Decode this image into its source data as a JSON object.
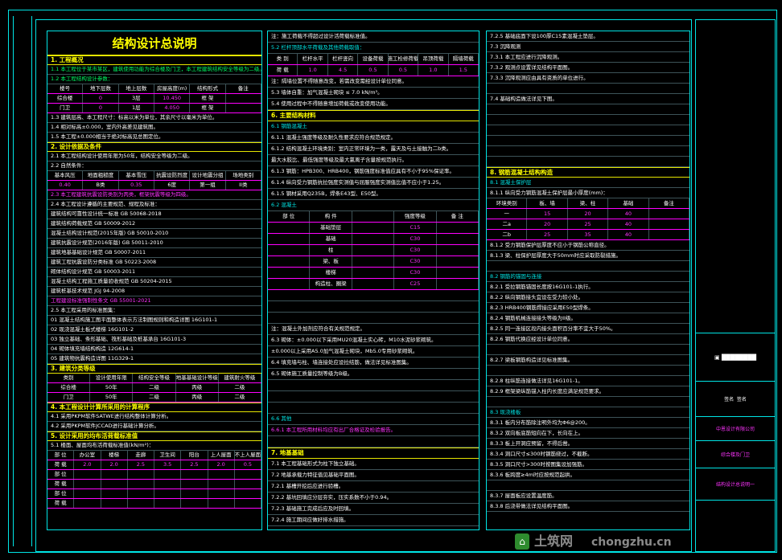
{
  "sheet": {
    "title": "结构设计总说明",
    "panel1": [
      {
        "k": "h",
        "text": "1. 工程概况"
      },
      {
        "k": "s",
        "text": "1.1 本工程位于某市某区，建筑使用功能为综合楼及门卫，本工程建筑结构安全等级为二级。"
      },
      {
        "k": "s",
        "text": "1.2 本工程结构设计参数："
      },
      {
        "k": "t",
        "cells": [
          "楼号",
          "地下层数",
          "地上层数",
          "房屋高度(m)",
          "结构形式",
          "备注"
        ]
      },
      {
        "k": "t",
        "cells": [
          "综合楼",
          "0",
          "3层",
          "10.450",
          "框 架",
          ""
        ]
      },
      {
        "k": "t",
        "cells": [
          "门卫",
          "0",
          "1层",
          "4.050",
          "框 架",
          ""
        ]
      },
      {
        "k": "p",
        "text": "1.3 建筑层高、本工程尺寸：标高以米为单位，其余尺寸以毫米为单位。"
      },
      {
        "k": "p",
        "text": "1.4 相对标高±0.000，室内外高差见建筑图。"
      },
      {
        "k": "p",
        "text": "1.5 本工程±0.000相当于绝对标高见总图定位。"
      },
      {
        "k": "h",
        "text": "2. 设计依据及条件"
      },
      {
        "k": "p",
        "text": "2.1 本工程结构设计使用年限为50年，结构安全等级为二级。"
      },
      {
        "k": "p",
        "text": "2.2 自然条件："
      },
      {
        "k": "t",
        "cells": [
          "基本风压",
          "地面粗糙度",
          "基本雪压",
          "抗震设防烈度",
          "设计地震分组",
          "场地类别"
        ]
      },
      {
        "k": "t",
        "cells": [
          "0.40",
          "B类",
          "0.35",
          "6度",
          "第一组",
          "II类"
        ]
      },
      {
        "k": "m",
        "text": "2.3 本工程建筑抗震设防类别为丙类，框架抗震等级为四级。"
      },
      {
        "k": "p",
        "text": "2.4 本工程设计遵循的主要规范、规程及标准："
      },
      {
        "k": "p",
        "text": "建筑结构可靠性设计统一标准        GB 50068-2018"
      },
      {
        "k": "p",
        "text": "建筑结构荷载规范                  GB 50009-2012"
      },
      {
        "k": "p",
        "text": "混凝土结构设计规范(2015年版)       GB 50010-2010"
      },
      {
        "k": "p",
        "text": "建筑抗震设计规范(2016年版)         GB 50011-2010"
      },
      {
        "k": "p",
        "text": "建筑地基基础设计规范              GB 50007-2011"
      },
      {
        "k": "p",
        "text": "建筑工程抗震设防分类标准          GB 50223-2008"
      },
      {
        "k": "p",
        "text": "砌体结构设计规范                  GB 50003-2011"
      },
      {
        "k": "p",
        "text": "混凝土结构工程施工质量验收规范    GB 50204-2015"
      },
      {
        "k": "p",
        "text": "建筑桩基技术规范                  JGJ 94-2008"
      },
      {
        "k": "m",
        "text": "工程建设标准强制性条文            GB 55001-2021"
      },
      {
        "k": "p",
        "text": "2.5 本工程采用的标准图集："
      },
      {
        "k": "p",
        "text": "01  混凝土结构施工图平面整体表示方法制图规则和构造详图   16G101-1"
      },
      {
        "k": "p",
        "text": "02  现浇混凝土板式楼梯                                   16G101-2"
      },
      {
        "k": "p",
        "text": "03  独立基础、条形基础、筏形基础及桩基承台               16G101-3"
      },
      {
        "k": "p",
        "text": "04  砌体填充墙结构构造                                   12G614-1"
      },
      {
        "k": "p",
        "text": "05  建筑物抗震构造详图                                   11G329-1"
      },
      {
        "k": "h",
        "text": "3. 建筑分类等级"
      },
      {
        "k": "t",
        "cells": [
          "类别",
          "设计使用年限",
          "结构安全等级",
          "地基基础设计等级",
          "建筑耐火等级"
        ]
      },
      {
        "k": "t",
        "cells": [
          "综合楼",
          "50年",
          "二级",
          "丙级",
          "二级"
        ]
      },
      {
        "k": "t",
        "cells": [
          "门卫",
          "50年",
          "二级",
          "丙级",
          "二级"
        ]
      },
      {
        "k": "h",
        "text": "4. 本工程设计计算所采用的计算程序"
      },
      {
        "k": "p",
        "text": "4.1 采用PKPM软件SATWE进行结构整体计算分析。"
      },
      {
        "k": "p",
        "text": "4.2 采用PKPM软件JCCAD进行基础计算分析。"
      },
      {
        "k": "h",
        "text": "5. 设计采用的均布活荷载标准值"
      },
      {
        "k": "p",
        "text": "5.1 楼面、屋面均布活荷载标准值(kN/m²)："
      },
      {
        "k": "t",
        "cells": [
          "部 位",
          "办公室",
          "楼梯",
          "走廊",
          "卫生间",
          "阳台",
          "上人屋面",
          "不上人屋面"
        ]
      },
      {
        "k": "t",
        "cells": [
          "荷 载",
          "2.0",
          "2.0",
          "2.5",
          "3.5",
          "2.5",
          "2.0",
          "0.5"
        ]
      },
      {
        "k": "t",
        "cells": [
          "部 位",
          "",
          "",
          "",
          "",
          "",
          "",
          ""
        ]
      },
      {
        "k": "t",
        "cells": [
          "荷 载",
          "",
          "",
          "",
          "",
          "",
          "",
          ""
        ]
      },
      {
        "k": "t",
        "cells": [
          "部 位",
          "",
          "",
          "",
          "",
          "",
          "",
          ""
        ]
      },
      {
        "k": "t",
        "cells": [
          "荷 载",
          "",
          "",
          "",
          "",
          "",
          "",
          ""
        ]
      }
    ],
    "panel2": [
      {
        "k": "p",
        "text": "注：施工荷载不得超过设计活荷载标准值。"
      },
      {
        "k": "c",
        "text": "5.2 栏杆顶部水平荷载及其他荷载取值："
      },
      {
        "k": "t",
        "cells": [
          "类 别",
          "栏杆水平",
          "栏杆竖向",
          "设备荷载",
          "施工检修荷载",
          "吊顶荷载",
          "隔墙荷载"
        ]
      },
      {
        "k": "t",
        "cells": [
          "荷 载",
          "1.0",
          "4.5",
          "0.5",
          "0.5",
          "1.0",
          "1.5"
        ]
      },
      {
        "k": "p",
        "text": "注：隔墙位置不得随意改变，若需改变需经设计单位同意。"
      },
      {
        "k": "p",
        "text": "5.3 墙体自重：加气混凝土砌块 ≤ 7.0 kN/m³。"
      },
      {
        "k": "p",
        "text": "5.4 使用过程中不得随意增加荷载或改变使用功能。"
      },
      {
        "k": "h",
        "text": "6. 主要结构材料"
      },
      {
        "k": "c",
        "text": "6.1 钢筋混凝土"
      },
      {
        "k": "p",
        "text": "6.1.1 混凝土强度等级及耐久性要求应符合规范规定。"
      },
      {
        "k": "p",
        "text": "6.1.2 结构混凝土环境类别：室内正常环境为一类，露天及与土接触为二b类。"
      },
      {
        "k": "p",
        "text": "      最大水胶比、最低强度等级及最大氯离子含量按规范执行。"
      },
      {
        "k": "p",
        "text": "6.1.3 钢筋：HPB300、HRB400，钢筋强度标准值应具有不小于95%保证率。"
      },
      {
        "k": "p",
        "text": "6.1.4 纵向受力钢筋抗拉强度实测值与屈服强度实测值比值不应小于1.25。"
      },
      {
        "k": "p",
        "text": "6.1.5 钢材采用Q235B，焊条E43型、E50型。"
      },
      {
        "k": "c",
        "text": "6.2 混凝土"
      },
      {
        "k": "t",
        "cells": [
          "部 位",
          "构 件",
          "",
          "强度等级",
          "备 注"
        ]
      },
      {
        "k": "t",
        "cells": [
          "",
          "基础垫层",
          "",
          "C15",
          ""
        ]
      },
      {
        "k": "t",
        "cells": [
          "",
          "基础",
          "",
          "C30",
          ""
        ]
      },
      {
        "k": "t",
        "cells": [
          "",
          "柱",
          "",
          "C30",
          ""
        ]
      },
      {
        "k": "t",
        "cells": [
          "",
          "梁、板",
          "",
          "C30",
          ""
        ]
      },
      {
        "k": "t",
        "cells": [
          "",
          "楼梯",
          "",
          "C30",
          ""
        ]
      },
      {
        "k": "t",
        "cells": [
          "",
          "构造柱、圈梁",
          "",
          "C25",
          ""
        ]
      },
      {
        "k": "p",
        "text": ""
      },
      {
        "k": "p",
        "text": ""
      },
      {
        "k": "p",
        "text": ""
      },
      {
        "k": "p",
        "text": "注：混凝土外加剂应符合有关规范规定。"
      },
      {
        "k": "p",
        "text": "6.3 砌体：±0.000以下采用MU20混凝土实心砖，M10水泥砂浆砌筑。"
      },
      {
        "k": "p",
        "text": "      ±0.000以上采用A5.0加气混凝土砌块，Mb5.0专用砂浆砌筑。"
      },
      {
        "k": "p",
        "text": "6.4 填充墙与柱、墙连接处应设拉结筋，做法详见标准图集。"
      },
      {
        "k": "p",
        "text": "6.5 砌体施工质量控制等级为B级。"
      },
      {
        "k": "p",
        "text": ""
      },
      {
        "k": "p",
        "text": ""
      },
      {
        "k": "p",
        "text": ""
      },
      {
        "k": "c",
        "text": "6.6 其他"
      },
      {
        "k": "m",
        "text": "6.6.1 本工程所用材料均应有出厂合格证及检验报告。"
      },
      {
        "k": "p",
        "text": ""
      },
      {
        "k": "h",
        "text": "7. 地基基础"
      },
      {
        "k": "p",
        "text": "7.1 本工程基础形式为柱下独立基础。"
      },
      {
        "k": "p",
        "text": "7.2 地基承载力特征值见基础平面图。"
      },
      {
        "k": "p",
        "text": "7.2.1 基槽开挖后应进行验槽。"
      },
      {
        "k": "p",
        "text": "7.2.2 基坑回填应分层夯实，压实系数不小于0.94。"
      },
      {
        "k": "p",
        "text": "7.2.3 基础施工完成后应及时回填。"
      },
      {
        "k": "p",
        "text": "7.2.4 施工期间应做好排水措施。"
      }
    ],
    "panel3": [
      {
        "k": "p",
        "text": "7.2.5 基础底面下设100厚C15素混凝土垫层。"
      },
      {
        "k": "p",
        "text": "7.3 沉降观测"
      },
      {
        "k": "p",
        "text": "7.3.1 本工程应进行沉降观测。"
      },
      {
        "k": "p",
        "text": "7.3.2 观测点设置详见结构平面图。"
      },
      {
        "k": "p",
        "text": "7.3.3 沉降观测应由具有资质的单位进行。"
      },
      {
        "k": "p",
        "text": ""
      },
      {
        "k": "p",
        "text": "7.4 基础构造做法详见下图。"
      },
      {
        "k": "p",
        "text": ""
      },
      {
        "k": "p",
        "text": ""
      },
      {
        "k": "p",
        "text": ""
      },
      {
        "k": "p",
        "text": ""
      },
      {
        "k": "p",
        "text": ""
      },
      {
        "k": "p",
        "text": ""
      },
      {
        "k": "h",
        "text": "8. 钢筋混凝土结构构造"
      },
      {
        "k": "c",
        "text": "8.1 混凝土保护层"
      },
      {
        "k": "p",
        "text": "8.1.1 纵向受力钢筋混凝土保护层最小厚度(mm)："
      },
      {
        "k": "t",
        "cells": [
          "环境类别",
          "板、墙",
          "梁、柱",
          "基础",
          "备注"
        ]
      },
      {
        "k": "t",
        "cells": [
          "一",
          "15",
          "20",
          "40",
          ""
        ]
      },
      {
        "k": "t",
        "cells": [
          "二a",
          "20",
          "25",
          "40",
          ""
        ]
      },
      {
        "k": "t",
        "cells": [
          "二b",
          "25",
          "35",
          "40",
          ""
        ]
      },
      {
        "k": "p",
        "text": "8.1.2 受力钢筋保护层厚度不应小于钢筋公称直径。"
      },
      {
        "k": "p",
        "text": "8.1.3 梁、柱保护层厚度大于50mm时应采取防裂措施。"
      },
      {
        "k": "p",
        "text": ""
      },
      {
        "k": "c",
        "text": "8.2 钢筋的锚固与连接"
      },
      {
        "k": "p",
        "text": "8.2.1 受拉钢筋锚固长度按16G101-1执行。"
      },
      {
        "k": "p",
        "text": "8.2.2 纵向钢筋接头宜设在受力较小处。"
      },
      {
        "k": "p",
        "text": "8.2.3 HRB400钢筋焊接应采用E50型焊条。"
      },
      {
        "k": "p",
        "text": "8.2.4 钢筋机械连接接头等级为II级。"
      },
      {
        "k": "p",
        "text": "8.2.5 同一连接区段内接头面积百分率不宜大于50%。"
      },
      {
        "k": "p",
        "text": "8.2.6 钢筋代换应经设计单位同意。"
      },
      {
        "k": "p",
        "text": ""
      },
      {
        "k": "p",
        "text": "8.2.7 梁板钢筋构造详见标准图集。"
      },
      {
        "k": "p",
        "text": ""
      },
      {
        "k": "p",
        "text": "8.2.8 柱纵筋连接做法详见16G101-1。"
      },
      {
        "k": "p",
        "text": "8.2.9 框架梁纵筋锚入柱内长度应满足规范要求。"
      },
      {
        "k": "p",
        "text": ""
      },
      {
        "k": "c",
        "text": "8.3 现浇楼板"
      },
      {
        "k": "p",
        "text": "8.3.1 板内分布筋除注明外均为Φ6@200。"
      },
      {
        "k": "p",
        "text": "8.3.2 双向板底筋短向在下，长向在上。"
      },
      {
        "k": "p",
        "text": "8.3.3 板上开洞应预留，不得后凿。"
      },
      {
        "k": "p",
        "text": "8.3.4 洞口尺寸≤300时钢筋绕过，不截断。"
      },
      {
        "k": "p",
        "text": "8.3.5 洞口尺寸>300时按图集设加强筋。"
      },
      {
        "k": "p",
        "text": "8.3.6 板跨度≥4m时应按规范起拱。"
      },
      {
        "k": "p",
        "text": ""
      },
      {
        "k": "p",
        "text": "8.3.7 屋面板应设置温度筋。"
      },
      {
        "k": "p",
        "text": "8.3.8 后浇带做法详见结构平面图。"
      }
    ],
    "title_block": {
      "company_name": "中恩设计有限公司",
      "project_name": "综合楼及门卫",
      "drawing_name": "结构设计总说明一",
      "role1": "签名",
      "role2": "签名"
    },
    "watermark": {
      "brand": "土筑网",
      "url": "chongzhu.cn"
    }
  },
  "colors": {
    "frame": "#00e5e5",
    "heading": "#ffff00",
    "green": "#00ff66",
    "magenta": "#ff33ff",
    "background": "#000000"
  }
}
